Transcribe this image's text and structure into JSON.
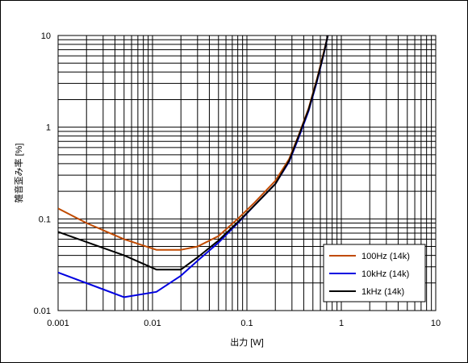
{
  "chart_data": {
    "type": "line",
    "xlabel": "出力 [W]",
    "ylabel": "雑音歪み率 [%]",
    "x_scale": "log",
    "y_scale": "log",
    "xlim": [
      0.001,
      10
    ],
    "ylim": [
      0.01,
      10
    ],
    "x_tick_labels": [
      "0.001",
      "0.01",
      "0.1",
      "1",
      "10"
    ],
    "y_tick_labels": [
      "0.01",
      "0.1",
      "1",
      "10"
    ],
    "grid": true,
    "legend_position": "bottom-right",
    "series": [
      {
        "name": "100Hz (14k)",
        "color": "#c04a00",
        "points": [
          [
            0.001,
            0.13
          ],
          [
            0.002,
            0.09
          ],
          [
            0.005,
            0.06
          ],
          [
            0.011,
            0.046
          ],
          [
            0.02,
            0.046
          ],
          [
            0.03,
            0.05
          ],
          [
            0.05,
            0.065
          ],
          [
            0.08,
            0.1
          ],
          [
            0.12,
            0.15
          ],
          [
            0.2,
            0.26
          ],
          [
            0.28,
            0.45
          ],
          [
            0.35,
            0.8
          ],
          [
            0.45,
            1.6
          ],
          [
            0.55,
            3.3
          ],
          [
            0.65,
            6.5
          ],
          [
            0.72,
            10
          ]
        ]
      },
      {
        "name": "10kHz (14k)",
        "color": "#0000e0",
        "points": [
          [
            0.001,
            0.026
          ],
          [
            0.005,
            0.014
          ],
          [
            0.011,
            0.016
          ],
          [
            0.02,
            0.024
          ],
          [
            0.03,
            0.035
          ],
          [
            0.05,
            0.055
          ],
          [
            0.08,
            0.09
          ],
          [
            0.12,
            0.14
          ],
          [
            0.2,
            0.24
          ],
          [
            0.28,
            0.42
          ],
          [
            0.35,
            0.75
          ],
          [
            0.45,
            1.5
          ],
          [
            0.55,
            3.1
          ],
          [
            0.65,
            6.2
          ],
          [
            0.72,
            10
          ]
        ]
      },
      {
        "name": "1kHz (14k)",
        "color": "#000000",
        "points": [
          [
            0.001,
            0.072
          ],
          [
            0.005,
            0.04
          ],
          [
            0.011,
            0.028
          ],
          [
            0.02,
            0.028
          ],
          [
            0.03,
            0.038
          ],
          [
            0.05,
            0.058
          ],
          [
            0.08,
            0.092
          ],
          [
            0.12,
            0.14
          ],
          [
            0.2,
            0.24
          ],
          [
            0.28,
            0.43
          ],
          [
            0.35,
            0.78
          ],
          [
            0.45,
            1.55
          ],
          [
            0.55,
            3.2
          ],
          [
            0.65,
            6.3
          ],
          [
            0.72,
            10
          ]
        ]
      }
    ]
  }
}
